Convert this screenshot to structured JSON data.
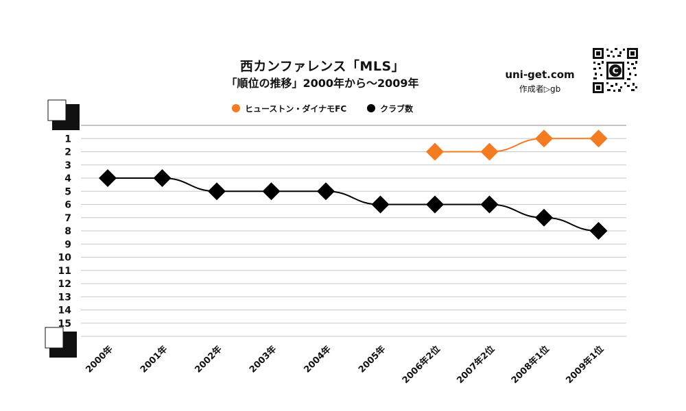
{
  "header": {
    "title": "西カンファレンス「MLS」",
    "subtitle": "「順位の推移」2000年から～2009年",
    "site": "uni-get.com",
    "author": "作成者▷gb"
  },
  "colors": {
    "series1": "#f47b20",
    "series2": "#000000",
    "grid": "#c8c8c8"
  },
  "icons": {
    "qr": "qr-code-icon"
  },
  "chart_data": {
    "type": "line",
    "categories": [
      "2000年",
      "2001年",
      "2002年",
      "2003年",
      "2004年",
      "2005年",
      "2006年2位",
      "2007年2位",
      "2008年1位",
      "2009年1位"
    ],
    "y_ticks": [
      "1",
      "2",
      "3",
      "4",
      "5",
      "6",
      "7",
      "8",
      "9",
      "10",
      "11",
      "12",
      "13",
      "14",
      "15"
    ],
    "ylim": [
      1,
      15
    ],
    "y_inverted": true,
    "grid": true,
    "legend_position": "top",
    "series": [
      {
        "name": "ヒューストン・ダイナモFC",
        "color": "#f47b20",
        "values": [
          null,
          null,
          null,
          null,
          null,
          null,
          2,
          2,
          1,
          1
        ]
      },
      {
        "name": "クラブ数",
        "color": "#000000",
        "values": [
          4,
          4,
          5,
          5,
          5,
          6,
          6,
          6,
          7,
          8
        ]
      }
    ]
  }
}
